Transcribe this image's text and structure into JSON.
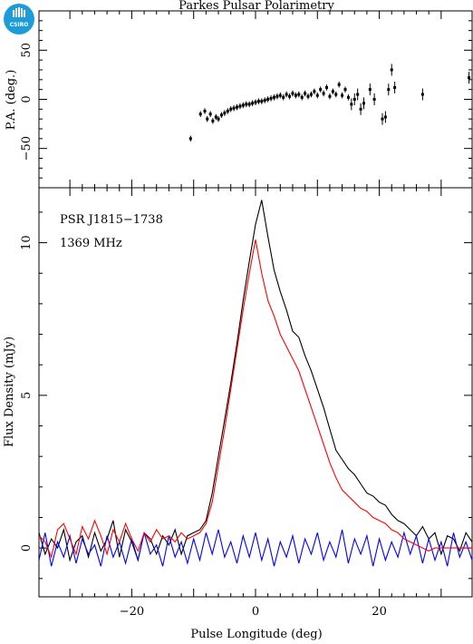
{
  "chart_data": [
    {
      "panel": "position-angle",
      "type": "scatter",
      "title": "Parkes Pulsar Polarimetry",
      "ylabel": "P.A. (deg.)",
      "xlim": [
        -35,
        35
      ],
      "ylim": [
        -90,
        90
      ],
      "yticks": [
        -50,
        0,
        50
      ],
      "series": [
        {
          "style": "points-with-errorbars",
          "x": [
            -10.5,
            -8.9,
            -8.2,
            -7.8,
            -7.3,
            -6.9,
            -6.4,
            -6.0,
            -5.5,
            -5.0,
            -4.5,
            -4.0,
            -3.5,
            -3.0,
            -2.5,
            -2.0,
            -1.5,
            -1.0,
            -0.5,
            0.0,
            0.5,
            1.0,
            1.5,
            2.0,
            2.5,
            3.0,
            3.5,
            4.0,
            4.5,
            5.0,
            5.5,
            6.0,
            6.5,
            7.0,
            7.5,
            8.0,
            8.5,
            9.0,
            9.5,
            10.0,
            10.5,
            11.0,
            11.5,
            12.0,
            12.5,
            13.0,
            13.5,
            14.0,
            14.5,
            15.0,
            15.5,
            16.0,
            16.5,
            17.0,
            17.5,
            18.5,
            19.2,
            20.5,
            21.0,
            21.5,
            22.0,
            22.5,
            27.0,
            34.5
          ],
          "y": [
            -40,
            -15,
            -12,
            -20,
            -15,
            -22,
            -18,
            -20,
            -16,
            -14,
            -12,
            -10,
            -9,
            -8,
            -7,
            -6,
            -5,
            -5,
            -4,
            -3,
            -2,
            -2,
            -1,
            0,
            1,
            2,
            3,
            4,
            2,
            5,
            3,
            6,
            4,
            5,
            2,
            6,
            3,
            5,
            8,
            4,
            10,
            6,
            12,
            3,
            8,
            5,
            15,
            4,
            10,
            2,
            -5,
            0,
            5,
            -10,
            -4,
            10,
            0,
            -20,
            -18,
            10,
            30,
            12,
            5,
            22
          ]
        }
      ]
    },
    {
      "panel": "profile",
      "type": "line",
      "xlabel": "Pulse Longitude (deg)",
      "ylabel": "Flux Density (mJy)",
      "xlim": [
        -35,
        35
      ],
      "ylim": [
        -1.6,
        11.8
      ],
      "xticks": [
        -20,
        0,
        20
      ],
      "yticks": [
        0,
        5,
        10
      ],
      "annotations": [
        "PSR J1815−1738",
        "1369 MHz"
      ],
      "x": [
        -35,
        -34,
        -33,
        -32,
        -31,
        -30,
        -29,
        -28,
        -27,
        -26,
        -25,
        -24,
        -23,
        -22,
        -21,
        -20,
        -19,
        -18,
        -17,
        -16,
        -15,
        -14,
        -13,
        -12,
        -11,
        -10,
        -9,
        -8,
        -7,
        -6,
        -5,
        -4,
        -3,
        -2,
        -1,
        0,
        1,
        2,
        3,
        4,
        5,
        6,
        7,
        8,
        9,
        10,
        11,
        12,
        13,
        14,
        15,
        16,
        17,
        18,
        19,
        20,
        21,
        22,
        23,
        24,
        25,
        26,
        27,
        28,
        29,
        30,
        31,
        32,
        33,
        34,
        35
      ],
      "series": [
        {
          "color": "#000000",
          "values": [
            0.5,
            -0.2,
            0.3,
            0.0,
            0.6,
            -0.4,
            0.2,
            0.4,
            -0.3,
            0.5,
            -0.1,
            0.3,
            0.9,
            -0.3,
            0.6,
            0.2,
            -0.4,
            0.5,
            0.3,
            -0.2,
            0.4,
            0.1,
            0.6,
            -0.2,
            0.4,
            0.5,
            0.6,
            0.9,
            1.8,
            3.0,
            4.2,
            5.4,
            6.7,
            8.1,
            9.4,
            10.6,
            11.4,
            10.2,
            9.1,
            8.4,
            7.8,
            7.1,
            6.9,
            6.3,
            5.8,
            5.2,
            4.6,
            3.9,
            3.2,
            2.9,
            2.6,
            2.4,
            2.1,
            1.8,
            1.7,
            1.5,
            1.4,
            1.1,
            0.9,
            0.8,
            0.6,
            0.4,
            0.7,
            0.3,
            0.5,
            -0.2,
            0.4,
            0.3,
            -0.1,
            0.5,
            0.2
          ]
        },
        {
          "color": "#ff0000",
          "values": [
            0.4,
            0.2,
            -0.3,
            0.6,
            0.8,
            0.3,
            -0.2,
            0.7,
            0.3,
            0.9,
            0.4,
            -0.2,
            0.6,
            0.2,
            0.8,
            0.3,
            -0.1,
            0.5,
            0.2,
            0.6,
            0.3,
            0.4,
            0.2,
            0.5,
            0.3,
            0.4,
            0.5,
            0.8,
            1.5,
            2.7,
            3.9,
            5.2,
            6.5,
            7.8,
            9.0,
            10.1,
            9.0,
            8.1,
            7.6,
            7.0,
            6.6,
            6.2,
            5.8,
            5.2,
            4.6,
            4.0,
            3.4,
            2.8,
            2.3,
            1.9,
            1.7,
            1.5,
            1.3,
            1.2,
            1.0,
            0.9,
            0.8,
            0.6,
            0.5,
            0.3,
            0.2,
            0.1,
            0.0,
            -0.1,
            0.0,
            0.0,
            0.0,
            0.0,
            0.0,
            0.0,
            0.0
          ]
        },
        {
          "color": "#0000ff",
          "values": [
            -0.4,
            0.5,
            -0.6,
            0.2,
            -0.3,
            0.4,
            -0.5,
            0.3,
            -0.2,
            0.1,
            -0.6,
            0.4,
            -0.3,
            0.2,
            -0.5,
            0.3,
            -0.4,
            0.5,
            -0.2,
            0.1,
            -0.6,
            0.4,
            -0.3,
            0.2,
            -0.5,
            0.3,
            -0.4,
            0.5,
            -0.2,
            0.6,
            -0.3,
            0.2,
            -0.5,
            0.4,
            -0.3,
            0.5,
            -0.4,
            0.3,
            -0.6,
            0.2,
            -0.3,
            0.4,
            -0.5,
            0.3,
            -0.2,
            0.5,
            -0.4,
            0.2,
            -0.3,
            0.6,
            -0.5,
            0.3,
            -0.2,
            0.4,
            -0.6,
            0.3,
            -0.4,
            0.2,
            -0.3,
            0.5,
            -0.2,
            0.4,
            -0.5,
            0.3,
            -0.4,
            0.2,
            -0.6,
            0.5,
            -0.3,
            0.2,
            -0.4
          ]
        }
      ]
    }
  ],
  "logo": {
    "text": "CSIRO",
    "color": "#1a9dd9"
  }
}
